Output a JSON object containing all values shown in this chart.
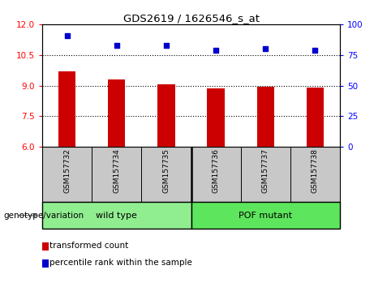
{
  "title": "GDS2619 / 1626546_s_at",
  "samples": [
    "GSM157732",
    "GSM157734",
    "GSM157735",
    "GSM157736",
    "GSM157737",
    "GSM157738"
  ],
  "bar_values": [
    9.7,
    9.3,
    9.05,
    8.85,
    8.95,
    8.9
  ],
  "percentile_values": [
    91,
    83,
    83,
    79,
    80,
    79
  ],
  "ylim_left": [
    6,
    12
  ],
  "ylim_right": [
    0,
    100
  ],
  "yticks_left": [
    6,
    7.5,
    9,
    10.5,
    12
  ],
  "yticks_right": [
    0,
    25,
    50,
    75,
    100
  ],
  "hlines": [
    7.5,
    9,
    10.5
  ],
  "bar_color": "#cc0000",
  "scatter_color": "#0000cc",
  "group_label": "genotype/variation",
  "groups": [
    {
      "label": "wild type",
      "start": 0,
      "end": 3,
      "color": "#90ee90"
    },
    {
      "label": "POF mutant",
      "start": 3,
      "end": 6,
      "color": "#5de65d"
    }
  ],
  "legend_items": [
    {
      "label": "transformed count",
      "color": "#cc0000"
    },
    {
      "label": "percentile rank within the sample",
      "color": "#0000cc"
    }
  ],
  "bg_color": "#ffffff",
  "tick_label_area_color": "#c8c8c8"
}
